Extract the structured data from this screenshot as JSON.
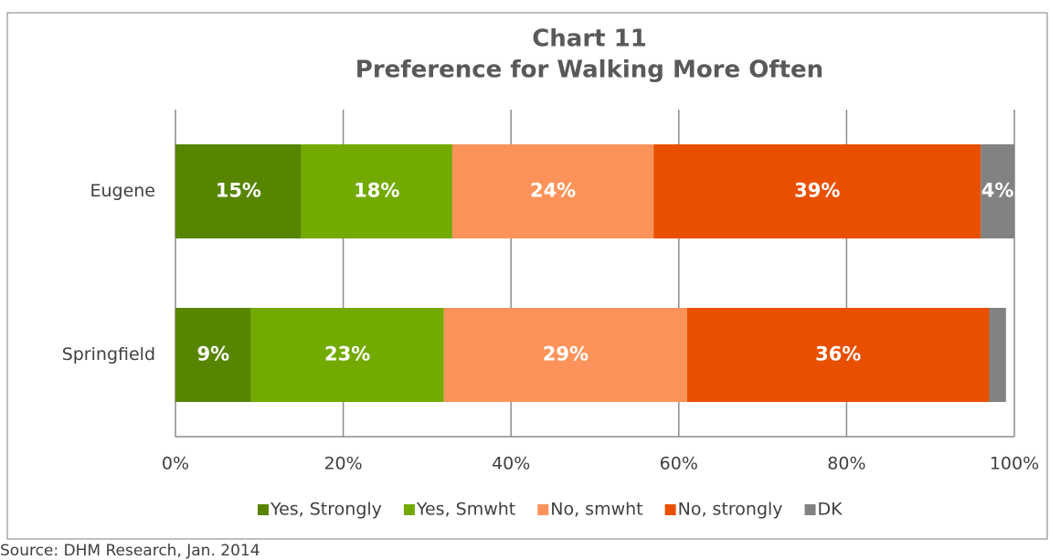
{
  "chart_data": {
    "type": "stacked_barh",
    "title": [
      "Chart 11",
      "Preference for Walking More Often"
    ],
    "categories": [
      "Eugene",
      "Springfield"
    ],
    "series": [
      {
        "name": "Yes, Strongly",
        "color": "#578500",
        "values": [
          15,
          9
        ],
        "value_labels": [
          "15%",
          "9%"
        ]
      },
      {
        "name": "Yes, Smwht",
        "color": "#72aa00",
        "values": [
          18,
          23
        ],
        "value_labels": [
          "18%",
          "23%"
        ]
      },
      {
        "name": "No, smwht",
        "color": "#fd935a",
        "values": [
          24,
          29
        ],
        "value_labels": [
          "24%",
          "29%"
        ]
      },
      {
        "name": "No, strongly",
        "color": "#e85000",
        "values": [
          39,
          36
        ],
        "value_labels": [
          "39%",
          "36%"
        ]
      },
      {
        "name": "DK",
        "color": "#828282",
        "values": [
          4,
          2
        ],
        "value_labels": [
          "4%",
          null
        ]
      }
    ],
    "xlim": [
      0,
      100
    ],
    "xticks": [
      {
        "value": 0,
        "label": "0%"
      },
      {
        "value": 20,
        "label": "20%"
      },
      {
        "value": 40,
        "label": "40%"
      },
      {
        "value": 60,
        "label": "60%"
      },
      {
        "value": 80,
        "label": "80%"
      },
      {
        "value": 100,
        "label": "100%"
      }
    ],
    "grid": true,
    "legend": "bottom",
    "source": "Source: DHM Research, Jan. 2014"
  }
}
